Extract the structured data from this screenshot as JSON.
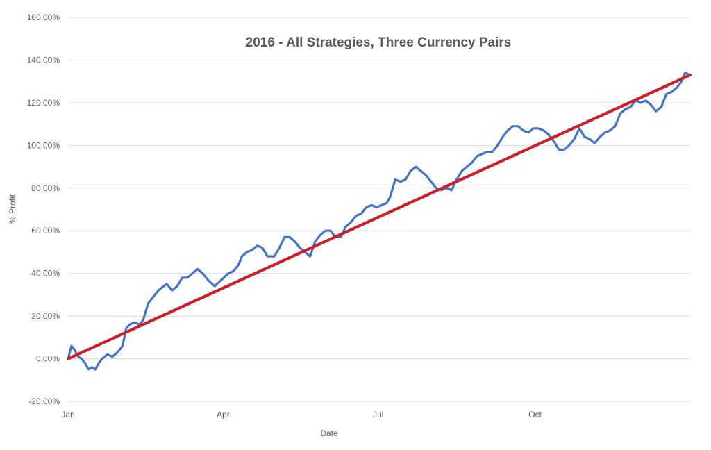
{
  "chart_data": {
    "type": "line",
    "title": "2016 - All Strategies, Three Currency Pairs",
    "xlabel": "Date",
    "ylabel": "% Profit",
    "ylim": [
      -20,
      160
    ],
    "y_ticks": [
      "-20.00%",
      "0.00%",
      "20.00%",
      "40.00%",
      "60.00%",
      "80.00%",
      "100.00%",
      "120.00%",
      "140.00%",
      "160.00%"
    ],
    "x_ticks": [
      "Jan",
      "Apr",
      "Jul",
      "Oct"
    ],
    "grid": "horizontal",
    "series": [
      {
        "color": "#4472C4",
        "points": [
          [
            "2016-01-01",
            0
          ],
          [
            "2016-01-03",
            6
          ],
          [
            "2016-01-05",
            4
          ],
          [
            "2016-01-07",
            1
          ],
          [
            "2016-01-09",
            0
          ],
          [
            "2016-01-11",
            -2
          ],
          [
            "2016-01-13",
            -5
          ],
          [
            "2016-01-15",
            -4
          ],
          [
            "2016-01-17",
            -5
          ],
          [
            "2016-01-19",
            -2
          ],
          [
            "2016-01-21",
            0
          ],
          [
            "2016-01-24",
            2
          ],
          [
            "2016-01-27",
            1
          ],
          [
            "2016-01-30",
            3
          ],
          [
            "2016-02-02",
            6
          ],
          [
            "2016-02-04",
            14
          ],
          [
            "2016-02-06",
            16
          ],
          [
            "2016-02-09",
            17
          ],
          [
            "2016-02-12",
            16
          ],
          [
            "2016-02-14",
            18
          ],
          [
            "2016-02-17",
            26
          ],
          [
            "2016-02-20",
            29
          ],
          [
            "2016-02-23",
            32
          ],
          [
            "2016-02-26",
            34
          ],
          [
            "2016-02-28",
            35
          ],
          [
            "2016-03-02",
            32
          ],
          [
            "2016-03-05",
            34
          ],
          [
            "2016-03-08",
            38
          ],
          [
            "2016-03-11",
            38
          ],
          [
            "2016-03-14",
            40
          ],
          [
            "2016-03-17",
            42
          ],
          [
            "2016-03-20",
            40
          ],
          [
            "2016-03-23",
            37
          ],
          [
            "2016-03-27",
            34
          ],
          [
            "2016-03-31",
            37
          ],
          [
            "2016-04-04",
            40
          ],
          [
            "2016-04-07",
            41
          ],
          [
            "2016-04-10",
            44
          ],
          [
            "2016-04-12",
            48
          ],
          [
            "2016-04-15",
            50
          ],
          [
            "2016-04-18",
            51
          ],
          [
            "2016-04-21",
            53
          ],
          [
            "2016-04-24",
            52
          ],
          [
            "2016-04-27",
            48
          ],
          [
            "2016-05-01",
            48
          ],
          [
            "2016-05-04",
            52
          ],
          [
            "2016-05-07",
            57
          ],
          [
            "2016-05-10",
            57
          ],
          [
            "2016-05-13",
            55
          ],
          [
            "2016-05-16",
            52
          ],
          [
            "2016-05-19",
            50
          ],
          [
            "2016-05-22",
            48
          ],
          [
            "2016-05-25",
            55
          ],
          [
            "2016-05-28",
            58
          ],
          [
            "2016-05-31",
            60
          ],
          [
            "2016-06-03",
            60
          ],
          [
            "2016-06-06",
            57
          ],
          [
            "2016-06-09",
            57
          ],
          [
            "2016-06-12",
            62
          ],
          [
            "2016-06-15",
            64
          ],
          [
            "2016-06-18",
            67
          ],
          [
            "2016-06-21",
            68
          ],
          [
            "2016-06-24",
            71
          ],
          [
            "2016-06-27",
            72
          ],
          [
            "2016-06-30",
            71
          ],
          [
            "2016-07-03",
            72
          ],
          [
            "2016-07-06",
            73
          ],
          [
            "2016-07-08",
            76
          ],
          [
            "2016-07-11",
            84
          ],
          [
            "2016-07-14",
            83
          ],
          [
            "2016-07-17",
            84
          ],
          [
            "2016-07-20",
            88
          ],
          [
            "2016-07-23",
            90
          ],
          [
            "2016-07-26",
            88
          ],
          [
            "2016-07-29",
            86
          ],
          [
            "2016-08-01",
            83
          ],
          [
            "2016-08-04",
            80
          ],
          [
            "2016-08-07",
            79
          ],
          [
            "2016-08-10",
            80
          ],
          [
            "2016-08-13",
            79
          ],
          [
            "2016-08-16",
            84
          ],
          [
            "2016-08-19",
            88
          ],
          [
            "2016-08-22",
            90
          ],
          [
            "2016-08-25",
            92
          ],
          [
            "2016-08-28",
            95
          ],
          [
            "2016-08-31",
            96
          ],
          [
            "2016-09-03",
            97
          ],
          [
            "2016-09-06",
            97
          ],
          [
            "2016-09-09",
            100
          ],
          [
            "2016-09-12",
            104
          ],
          [
            "2016-09-15",
            107
          ],
          [
            "2016-09-18",
            109
          ],
          [
            "2016-09-21",
            109
          ],
          [
            "2016-09-24",
            107
          ],
          [
            "2016-09-27",
            106
          ],
          [
            "2016-09-30",
            108
          ],
          [
            "2016-10-03",
            108
          ],
          [
            "2016-10-06",
            107
          ],
          [
            "2016-10-09",
            105
          ],
          [
            "2016-10-12",
            102
          ],
          [
            "2016-10-15",
            98
          ],
          [
            "2016-10-18",
            98
          ],
          [
            "2016-10-21",
            100
          ],
          [
            "2016-10-24",
            103
          ],
          [
            "2016-10-27",
            108
          ],
          [
            "2016-10-30",
            104
          ],
          [
            "2016-11-02",
            103
          ],
          [
            "2016-11-05",
            101
          ],
          [
            "2016-11-08",
            104
          ],
          [
            "2016-11-11",
            106
          ],
          [
            "2016-11-14",
            107
          ],
          [
            "2016-11-17",
            109
          ],
          [
            "2016-11-20",
            115
          ],
          [
            "2016-11-23",
            117
          ],
          [
            "2016-11-26",
            118
          ],
          [
            "2016-11-29",
            121
          ],
          [
            "2016-12-02",
            120
          ],
          [
            "2016-12-05",
            121
          ],
          [
            "2016-12-08",
            119
          ],
          [
            "2016-12-11",
            116
          ],
          [
            "2016-12-14",
            118
          ],
          [
            "2016-12-17",
            124
          ],
          [
            "2016-12-20",
            125
          ],
          [
            "2016-12-23",
            127
          ],
          [
            "2016-12-26",
            130
          ],
          [
            "2016-12-28",
            134
          ],
          [
            "2016-12-31",
            133
          ]
        ]
      },
      {
        "color": "#C9202A",
        "points": [
          [
            "2016-01-01",
            0
          ],
          [
            "2016-12-31",
            133
          ]
        ]
      }
    ]
  }
}
